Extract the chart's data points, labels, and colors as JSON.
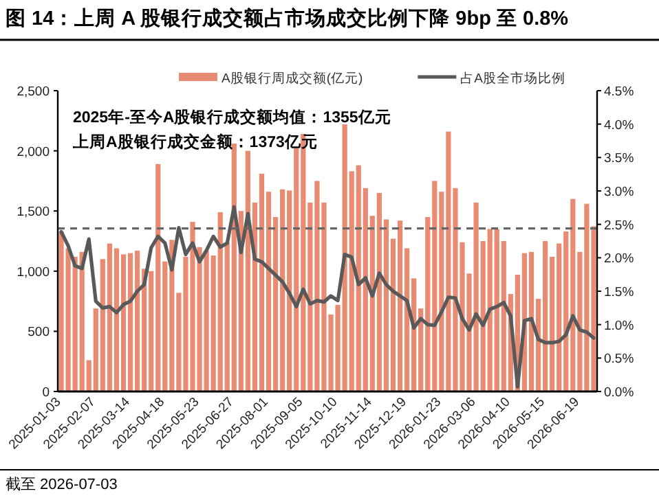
{
  "chart_data": {
    "type": "bar",
    "title": "图 14：上周 A 股银行成交额占市场成交比例下降 9bp 至 0.8%",
    "categories": [
      "2025-01-03",
      null,
      null,
      null,
      null,
      "2025-02-07",
      null,
      null,
      null,
      null,
      "2025-03-14",
      null,
      null,
      null,
      null,
      "2025-04-18",
      null,
      null,
      null,
      null,
      "2025-05-23",
      null,
      null,
      null,
      null,
      "2025-06-27",
      null,
      null,
      null,
      null,
      "2025-08-01",
      null,
      null,
      null,
      null,
      "2025-09-05",
      null,
      null,
      null,
      null,
      "2025-10-10",
      null,
      null,
      null,
      null,
      "2025-11-14",
      null,
      null,
      null,
      null,
      "2025-12-19",
      null,
      null,
      null,
      null,
      "2026-01-23",
      null,
      null,
      null,
      null,
      "2026-03-06",
      null,
      null,
      null,
      null,
      "2026-04-10",
      null,
      null,
      null,
      null,
      "2026-05-15",
      null,
      null,
      null,
      null,
      "2026-06-19",
      null,
      null
    ],
    "series": [
      {
        "name": "A股银行周成交额(亿元)",
        "color": "#e98b73",
        "values": [
          1330,
          1190,
          1120,
          1160,
          260,
          690,
          1100,
          1230,
          1190,
          1140,
          1150,
          1170,
          1020,
          1000,
          1890,
          1080,
          1260,
          820,
          1120,
          1410,
          1200,
          1170,
          1130,
          1490,
          1240,
          2060,
          1500,
          2000,
          1570,
          1810,
          1660,
          1450,
          1680,
          1670,
          2020,
          2140,
          1570,
          1750,
          1570,
          640,
          720,
          2220,
          1830,
          1880,
          1690,
          1460,
          1650,
          1430,
          1270,
          1420,
          1190,
          940,
          690,
          1450,
          1750,
          1660,
          2160,
          1690,
          1240,
          980,
          1570,
          1250,
          1350,
          1350,
          1250,
          810,
          970,
          1150,
          1160,
          770,
          1250,
          1120,
          1230,
          1330,
          1600,
          1160,
          1560,
          1373
        ]
      },
      {
        "name": "占A股全市场比例",
        "type": "line",
        "axis": "y2",
        "color": "#595959",
        "values": [
          2.39,
          2.18,
          1.88,
          1.84,
          2.28,
          1.35,
          1.25,
          1.27,
          1.18,
          1.3,
          1.35,
          1.5,
          1.6,
          2.15,
          2.32,
          2.22,
          1.82,
          2.45,
          2.05,
          2.22,
          1.94,
          2.11,
          2.32,
          2.16,
          2.22,
          2.76,
          2.08,
          2.66,
          1.98,
          1.94,
          1.84,
          1.74,
          1.64,
          1.47,
          1.27,
          1.53,
          1.31,
          1.36,
          1.34,
          1.43,
          1.36,
          2.05,
          2.01,
          1.6,
          1.7,
          1.43,
          1.77,
          1.6,
          1.5,
          1.43,
          1.36,
          0.95,
          1.09,
          1.0,
          0.99,
          1.19,
          1.41,
          1.4,
          1.09,
          0.92,
          1.16,
          0.99,
          1.23,
          1.27,
          1.33,
          1.13,
          0.07,
          1.06,
          1.09,
          0.78,
          0.73,
          0.73,
          0.75,
          0.85,
          1.13,
          0.92,
          0.89,
          0.8
        ]
      }
    ],
    "ylim": [
      0,
      2500
    ],
    "yticks": [
      0,
      500,
      {
        "value": 1000,
        "label": "1,000"
      },
      {
        "value": 1500,
        "label": "1,500"
      },
      {
        "value": 2000,
        "label": "2,000"
      },
      {
        "value": 2500,
        "label": "2,500"
      }
    ],
    "y2lim": [
      0,
      4.5
    ],
    "y2ticks": [
      {
        "value": 0,
        "label": "0.0%"
      },
      {
        "value": 0.5,
        "label": "0.5%"
      },
      {
        "value": 1,
        "label": "1.0%"
      },
      {
        "value": 1.5,
        "label": "1.5%"
      },
      {
        "value": 2,
        "label": "2.0%"
      },
      {
        "value": 2.5,
        "label": "2.5%"
      },
      {
        "value": 3,
        "label": "3.0%"
      },
      {
        "value": 3.5,
        "label": "3.5%"
      },
      {
        "value": 4,
        "label": "4.0%"
      },
      {
        "value": 4.5,
        "label": "4.5%"
      }
    ],
    "ref_lines": [
      {
        "axis": "y",
        "value": 1355,
        "color": "#666666",
        "line_style": "dashed"
      }
    ],
    "annotations": [
      "2025年-至今A股银行成交额均值：1355亿元",
      "上周A股银行成交金额：1373亿元",
      "截至 2026-07-03"
    ],
    "legend": "top",
    "grid": false,
    "marker": "none",
    "line_style": "solid"
  }
}
